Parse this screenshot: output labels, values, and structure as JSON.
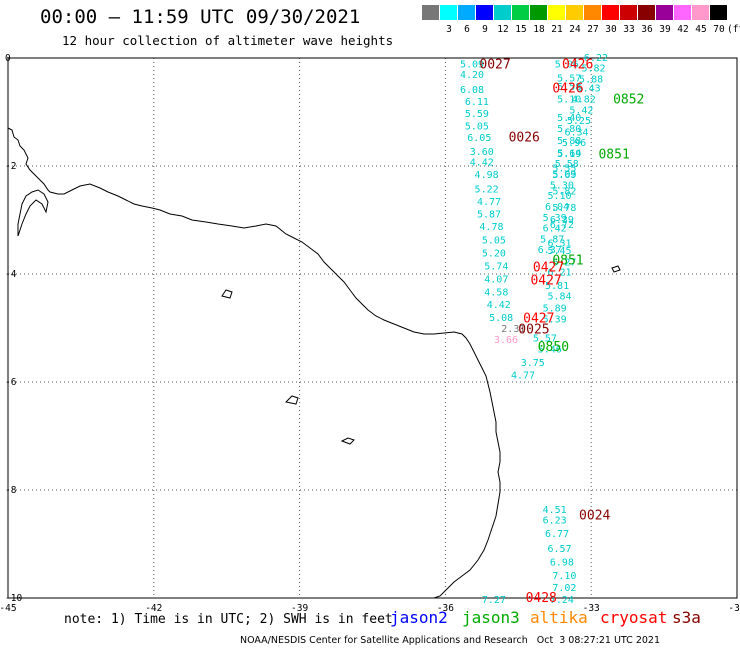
{
  "header": {
    "title": "00:00 — 11:59 UTC 09/30/2021",
    "subtitle": "12 hour collection of altimeter wave heights"
  },
  "legend": {
    "colors": [
      "#777777",
      "#00ffff",
      "#00aaff",
      "#0000ff",
      "#00cccc",
      "#00cc44",
      "#009900",
      "#ffff00",
      "#ffcc00",
      "#ff8800",
      "#ff0000",
      "#cc0000",
      "#880000",
      "#990099",
      "#ff66ff",
      "#ff99cc",
      "#000000"
    ],
    "labels": [
      "3",
      "6",
      "9",
      "12",
      "15",
      "18",
      "21",
      "24",
      "27",
      "30",
      "33",
      "36",
      "39",
      "42",
      "45",
      "70",
      "(ft)"
    ]
  },
  "axes": {
    "x_ticks": [
      "-45",
      "-42",
      "-39",
      "-36",
      "-33",
      "-30"
    ],
    "y_ticks": [
      "0",
      "-2",
      "-4",
      "-6",
      "-8",
      "-10"
    ],
    "x_range": [
      -45,
      -30
    ],
    "y_range": [
      -10,
      0
    ]
  },
  "satellites": {
    "jason2": {
      "label": "jason2",
      "color": "#0000ff"
    },
    "jason3": {
      "label": "jason3",
      "color": "#00aa00"
    },
    "altika": {
      "label": "altika",
      "color": "#ff8800"
    },
    "cryosat": {
      "label": "cryosat",
      "color": "#ff0000"
    },
    "s3a": {
      "label": "s3a",
      "color": "#880000"
    }
  },
  "swh_values": [
    {
      "v": "5.09",
      "lon": -35.7,
      "lat": -0.1,
      "c": "#00cccc"
    },
    {
      "v": "4.20",
      "lon": -35.7,
      "lat": -0.3,
      "c": "#00cccc"
    },
    {
      "v": "6.08",
      "lon": -35.7,
      "lat": -0.57,
      "c": "#00cccc"
    },
    {
      "v": "6.11",
      "lon": -35.6,
      "lat": -0.8,
      "c": "#00cccc"
    },
    {
      "v": "5.59",
      "lon": -35.6,
      "lat": -1.02,
      "c": "#00cccc"
    },
    {
      "v": "5.05",
      "lon": -35.6,
      "lat": -1.25,
      "c": "#00cccc"
    },
    {
      "v": "6.05",
      "lon": -35.55,
      "lat": -1.46,
      "c": "#00cccc"
    },
    {
      "v": "3.60",
      "lon": -35.5,
      "lat": -1.72,
      "c": "#00cccc"
    },
    {
      "v": "4.42",
      "lon": -35.5,
      "lat": -1.92,
      "c": "#00cccc"
    },
    {
      "v": "4.98",
      "lon": -35.4,
      "lat": -2.15,
      "c": "#00cccc"
    },
    {
      "v": "5.22",
      "lon": -35.4,
      "lat": -2.42,
      "c": "#00cccc"
    },
    {
      "v": "4.77",
      "lon": -35.35,
      "lat": -2.65,
      "c": "#00cccc"
    },
    {
      "v": "5.87",
      "lon": -35.35,
      "lat": -2.88,
      "c": "#00cccc"
    },
    {
      "v": "4.78",
      "lon": -35.3,
      "lat": -3.11,
      "c": "#00cccc"
    },
    {
      "v": "5.05",
      "lon": -35.25,
      "lat": -3.36,
      "c": "#00cccc"
    },
    {
      "v": "5.20",
      "lon": -35.25,
      "lat": -3.6,
      "c": "#00cccc"
    },
    {
      "v": "5.74",
      "lon": -35.2,
      "lat": -3.84,
      "c": "#00cccc"
    },
    {
      "v": "4.07",
      "lon": -35.2,
      "lat": -4.08,
      "c": "#00cccc"
    },
    {
      "v": "4.58",
      "lon": -35.2,
      "lat": -4.32,
      "c": "#00cccc"
    },
    {
      "v": "4.42",
      "lon": -35.15,
      "lat": -4.56,
      "c": "#00cccc"
    },
    {
      "v": "5.08",
      "lon": -35.1,
      "lat": -4.8,
      "c": "#00cccc"
    },
    {
      "v": "2.31",
      "lon": -34.85,
      "lat": -5.0,
      "c": "#777777"
    },
    {
      "v": "3.66",
      "lon": -35.0,
      "lat": -5.2,
      "c": "#ff99cc"
    },
    {
      "v": "3.75",
      "lon": -34.45,
      "lat": -5.63,
      "c": "#00cccc"
    },
    {
      "v": "4.77",
      "lon": -34.65,
      "lat": -5.86,
      "c": "#00cccc"
    },
    {
      "v": "5.06",
      "lon": -33.75,
      "lat": -0.1,
      "c": "#00cccc"
    },
    {
      "v": "5.57",
      "lon": -33.7,
      "lat": -0.36,
      "c": "#00cccc"
    },
    {
      "v": "5.58",
      "lon": -33.7,
      "lat": -0.52,
      "c": "#00cccc"
    },
    {
      "v": "5.10",
      "lon": -33.7,
      "lat": -0.75,
      "c": "#00cccc"
    },
    {
      "v": "5.40",
      "lon": -33.7,
      "lat": -1.09,
      "c": "#00cccc"
    },
    {
      "v": "5.80",
      "lon": -33.7,
      "lat": -1.3,
      "c": "#00cccc"
    },
    {
      "v": "5.88",
      "lon": -33.7,
      "lat": -1.52,
      "c": "#00cccc"
    },
    {
      "v": "5.64",
      "lon": -33.7,
      "lat": -1.75,
      "c": "#00cccc"
    },
    {
      "v": "5.55",
      "lon": -33.8,
      "lat": -2.03,
      "c": "#00cccc"
    },
    {
      "v": "5.69",
      "lon": -33.8,
      "lat": -2.15,
      "c": "#00cccc"
    },
    {
      "v": "5.82",
      "lon": -33.8,
      "lat": -2.45,
      "c": "#00cccc"
    },
    {
      "v": "5.78",
      "lon": -33.8,
      "lat": -2.76,
      "c": "#00cccc"
    },
    {
      "v": "6.39",
      "lon": -33.85,
      "lat": -2.98,
      "c": "#00cccc"
    },
    {
      "v": "6.72",
      "lon": -33.85,
      "lat": -3.07,
      "c": "#00cccc"
    },
    {
      "v": "6.31",
      "lon": -33.9,
      "lat": -3.42,
      "c": "#00cccc"
    },
    {
      "v": "5.45",
      "lon": -33.9,
      "lat": -3.56,
      "c": "#00cccc"
    },
    {
      "v": "6.27",
      "lon": -33.8,
      "lat": -3.77,
      "c": "#00cccc"
    },
    {
      "v": "6.21",
      "lon": -33.9,
      "lat": -3.95,
      "c": "#00cccc"
    },
    {
      "v": "5.81",
      "lon": -33.95,
      "lat": -4.2,
      "c": "#00cccc"
    },
    {
      "v": "5.84",
      "lon": -33.9,
      "lat": -4.4,
      "c": "#00cccc"
    },
    {
      "v": "5.89",
      "lon": -34.0,
      "lat": -4.62,
      "c": "#00cccc"
    },
    {
      "v": "5.39",
      "lon": -34.0,
      "lat": -4.82,
      "c": "#00cccc"
    },
    {
      "v": "5.57",
      "lon": -34.2,
      "lat": -5.18,
      "c": "#00cccc"
    },
    {
      "v": "5.46",
      "lon": -34.1,
      "lat": -5.38,
      "c": "#00cccc"
    },
    {
      "v": "6.22",
      "lon": -33.15,
      "lat": 0.02,
      "c": "#00cccc"
    },
    {
      "v": "5.82",
      "lon": -33.2,
      "lat": -0.18,
      "c": "#00cccc"
    },
    {
      "v": "5.88",
      "lon": -33.25,
      "lat": -0.38,
      "c": "#00cccc"
    },
    {
      "v": "5.43",
      "lon": -33.3,
      "lat": -0.55,
      "c": "#00cccc"
    },
    {
      "v": "4.82",
      "lon": -33.4,
      "lat": -0.75,
      "c": "#00cccc"
    },
    {
      "v": "5.42",
      "lon": -33.45,
      "lat": -0.95,
      "c": "#00cccc"
    },
    {
      "v": "5.25",
      "lon": -33.5,
      "lat": -1.15,
      "c": "#00cccc"
    },
    {
      "v": "6.34",
      "lon": -33.55,
      "lat": -1.36,
      "c": "#00cccc"
    },
    {
      "v": "5.96",
      "lon": -33.6,
      "lat": -1.56,
      "c": "#00cccc"
    },
    {
      "v": "5.19",
      "lon": -33.7,
      "lat": -1.76,
      "c": "#00cccc"
    },
    {
      "v": "5.58",
      "lon": -33.75,
      "lat": -1.94,
      "c": "#00cccc"
    },
    {
      "v": "5.03",
      "lon": -33.8,
      "lat": -2.14,
      "c": "#00cccc"
    },
    {
      "v": "5.30",
      "lon": -33.85,
      "lat": -2.34,
      "c": "#00cccc"
    },
    {
      "v": "5.10",
      "lon": -33.9,
      "lat": -2.54,
      "c": "#00cccc"
    },
    {
      "v": "6.04",
      "lon": -33.95,
      "lat": -2.74,
      "c": "#00cccc"
    },
    {
      "v": "5.39",
      "lon": -34.0,
      "lat": -2.94,
      "c": "#00cccc"
    },
    {
      "v": "6.42",
      "lon": -34.0,
      "lat": -3.14,
      "c": "#00cccc"
    },
    {
      "v": "5.87",
      "lon": -34.05,
      "lat": -3.34,
      "c": "#00cccc"
    },
    {
      "v": "6.37",
      "lon": -34.1,
      "lat": -3.54,
      "c": "#00cccc"
    },
    {
      "v": "4.51",
      "lon": -34.0,
      "lat": -8.35,
      "c": "#00cccc"
    },
    {
      "v": "6.23",
      "lon": -34.0,
      "lat": -8.55,
      "c": "#00cccc"
    },
    {
      "v": "6.77",
      "lon": -33.95,
      "lat": -8.8,
      "c": "#00cccc"
    },
    {
      "v": "6.57",
      "lon": -33.9,
      "lat": -9.07,
      "c": "#00cccc"
    },
    {
      "v": "6.98",
      "lon": -33.85,
      "lat": -9.32,
      "c": "#00cccc"
    },
    {
      "v": "7.10",
      "lon": -33.8,
      "lat": -9.57,
      "c": "#00cccc"
    },
    {
      "v": "7.02",
      "lon": -33.8,
      "lat": -9.8,
      "c": "#00cccc"
    },
    {
      "v": "7.24",
      "lon": -33.85,
      "lat": -10.02,
      "c": "#00cccc"
    },
    {
      "v": "7.27",
      "lon": -35.25,
      "lat": -10.02,
      "c": "#00cccc"
    }
  ],
  "pass_times": [
    {
      "t": "0027",
      "lon": -35.3,
      "lat": -0.1,
      "sat": "s3a"
    },
    {
      "t": "0426",
      "lon": -33.6,
      "lat": -0.1,
      "sat": "cryosat"
    },
    {
      "t": "0426",
      "lon": -33.8,
      "lat": -0.55,
      "sat": "cryosat"
    },
    {
      "t": "0852",
      "lon": -32.55,
      "lat": -0.75,
      "sat": "jason3"
    },
    {
      "t": "0026",
      "lon": -34.7,
      "lat": -1.45,
      "sat": "s3a"
    },
    {
      "t": "0851",
      "lon": -32.85,
      "lat": -1.77,
      "sat": "jason3"
    },
    {
      "t": "0851",
      "lon": -33.8,
      "lat": -3.73,
      "sat": "jason3"
    },
    {
      "t": "0427",
      "lon": -34.2,
      "lat": -3.86,
      "sat": "cryosat"
    },
    {
      "t": "0427",
      "lon": -34.25,
      "lat": -4.1,
      "sat": "cryosat"
    },
    {
      "t": "0427",
      "lon": -34.4,
      "lat": -4.81,
      "sat": "cryosat"
    },
    {
      "t": "0025",
      "lon": -34.5,
      "lat": -5.01,
      "sat": "s3a"
    },
    {
      "t": "0850",
      "lon": -34.1,
      "lat": -5.33,
      "sat": "jason3"
    },
    {
      "t": "0024",
      "lon": -33.25,
      "lat": -8.45,
      "sat": "s3a"
    },
    {
      "t": "0428",
      "lon": -34.35,
      "lat": -9.98,
      "sat": "cryosat"
    }
  ],
  "footer": {
    "note": "note: 1) Time is in UTC; 2) SWH is in feet",
    "credit": "NOAA/NESDIS Center for Satellite Applications and Research   Oct  3 08:27:21 UTC 2021"
  }
}
